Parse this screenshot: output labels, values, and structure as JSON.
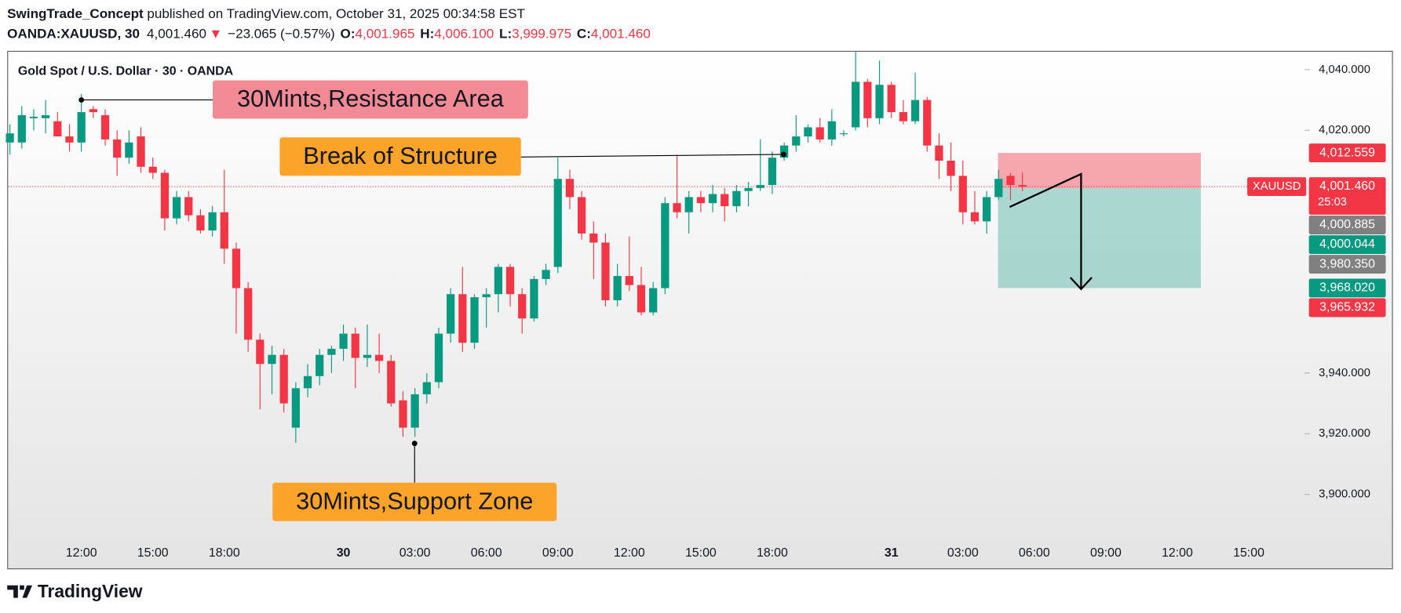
{
  "header": {
    "author": "SwingTrade_Concept",
    "published": " published on TradingView.com, October 31, 2025 00:34:58 EST",
    "symbol": "OANDA:XAUUSD, 30",
    "last": "4,001.460",
    "arrow": "▼",
    "change": "−23.065 (−0.57%)",
    "ohlc": [
      {
        "key": "O:",
        "value": "4,001.965"
      },
      {
        "key": "H:",
        "value": "4,006.100"
      },
      {
        "key": "L:",
        "value": "3,999.975"
      },
      {
        "key": "C:",
        "value": "4,001.460"
      }
    ]
  },
  "chart_data": {
    "type": "candlestick",
    "title": "Gold Spot / U.S. Dollar · 30 · OANDA",
    "categories": [
      null,
      null,
      null,
      null,
      null,
      null,
      "12:00",
      null,
      null,
      null,
      null,
      null,
      "15:00",
      null,
      null,
      null,
      null,
      null,
      "18:00",
      null,
      null,
      null,
      null,
      null,
      null,
      null,
      null,
      null,
      "30",
      null,
      null,
      null,
      null,
      null,
      "03:00",
      null,
      null,
      null,
      null,
      null,
      "06:00",
      null,
      null,
      null,
      null,
      null,
      "09:00",
      null,
      null,
      null,
      null,
      null,
      "12:00",
      null,
      null,
      null,
      null,
      null,
      "15:00",
      null,
      null,
      null,
      null,
      null,
      "18:00",
      null,
      null,
      null,
      null,
      null,
      null,
      null,
      null,
      null,
      "31",
      null,
      null,
      null,
      null,
      null,
      "03:00",
      null,
      null,
      null,
      null,
      null,
      "06:00",
      null,
      null,
      null,
      null,
      null,
      "09:00",
      null,
      null,
      null,
      null,
      null,
      "12:00",
      null,
      null,
      null,
      null,
      null,
      "15:00",
      null
    ],
    "open": [
      4016,
      4016,
      4024,
      4024,
      4023,
      4018,
      4016,
      4027,
      4025,
      4017,
      4011,
      4018,
      4008,
      4006,
      3991,
      3998,
      3992,
      3987,
      3993,
      3981,
      3968,
      3951,
      3943,
      3946,
      3922,
      3935,
      3939,
      3946,
      3948,
      3953,
      3945,
      3946,
      3944,
      3931,
      3922,
      3933,
      3937,
      3953,
      3966,
      3950,
      3965,
      3966,
      3975,
      3966,
      3958,
      3971,
      3975,
      4004,
      3998,
      3986,
      3983,
      3964,
      3972,
      3969,
      3960,
      3968,
      3996,
      3993,
      3998,
      3996,
      3999,
      3995,
      4000,
      4001,
      4002,
      4011,
      4015,
      4018,
      4021,
      4017,
      4019,
      4021,
      4036,
      4024,
      4035,
      4026,
      4023,
      4030,
      4015,
      4010,
      4005,
      3993,
      3990,
      3998,
      4005,
      4001.965,
      null,
      null,
      null,
      null,
      null,
      null,
      null,
      null,
      null,
      null,
      null,
      null,
      null,
      null,
      null,
      null,
      null,
      null,
      null,
      null
    ],
    "high": [
      4022,
      4028,
      4027,
      4030,
      4026,
      4022,
      4032,
      4028,
      4027,
      4020,
      4020,
      4021,
      4011,
      4007,
      4000,
      4000,
      3994,
      3995,
      4007,
      3983,
      3970,
      3953,
      3949,
      3948,
      3937,
      3943,
      3948,
      3949,
      3956,
      3955,
      3956,
      3953,
      3946,
      3934,
      3935,
      3940,
      3955,
      3968,
      3975,
      3966,
      3968,
      3976,
      3976,
      3968,
      3972,
      3976,
      4011,
      4007,
      4000,
      3990,
      3986,
      3976,
      3985,
      3975,
      3970,
      3998,
      4012,
      4000,
      4000,
      4002,
      4001,
      4002,
      4003,
      4017,
      4013,
      4016,
      4025,
      4022,
      4024,
      4027,
      4020,
      4046,
      4037,
      4043,
      4036,
      4030,
      4039,
      4031,
      4019,
      4016,
      4010,
      4000,
      4000,
      4007,
      4006,
      4006.1,
      null,
      null,
      null,
      null,
      null,
      null,
      null,
      null,
      null,
      null,
      null,
      null,
      null,
      null,
      null,
      null,
      null,
      null,
      null,
      null
    ],
    "low": [
      4012,
      4014,
      4020,
      4019,
      4018,
      4013,
      4013,
      4024,
      4015,
      4005,
      4009,
      4006,
      4004,
      3987,
      3989,
      3990,
      3986,
      3985,
      3976,
      3953,
      3947,
      3928,
      3933,
      3927,
      3917,
      3932,
      3936,
      3940,
      3944,
      3935,
      3942,
      3940,
      3929,
      3919,
      3919,
      3930,
      3935,
      3950,
      3947,
      3948,
      3955,
      3960,
      3962,
      3953,
      3957,
      3969,
      3973,
      3994,
      3984,
      3971,
      3962,
      3962,
      3967,
      3959,
      3959,
      3966,
      3991,
      3986,
      3993,
      3993,
      3990,
      3993,
      3995,
      4000,
      3999,
      4010,
      4013,
      4016,
      4016,
      4015,
      4018,
      4020,
      4021,
      4022,
      4024,
      4022,
      4022,
      4013,
      4004,
      4000,
      3989,
      3989,
      3986,
      3997,
      3997,
      3999.975,
      null,
      null,
      null,
      null,
      null,
      null,
      null,
      null,
      null,
      null,
      null,
      null,
      null,
      null,
      null,
      null,
      null,
      null,
      null,
      null
    ],
    "close": [
      4019,
      4025,
      4024.5,
      4025,
      4018,
      4016,
      4026,
      4026,
      4017,
      4011,
      4016,
      4008,
      4006,
      3991,
      3998,
      3992,
      3987,
      3993,
      3981,
      3968,
      3951,
      3943,
      3946,
      3930,
      3935,
      3939,
      3946,
      3948,
      3953,
      3945,
      3946,
      3944,
      3930,
      3922,
      3933,
      3937,
      3953,
      3966,
      3950,
      3965,
      3966,
      3975,
      3966,
      3958,
      3971,
      3974,
      4004,
      3998,
      3986,
      3983,
      3964,
      3972,
      3969,
      3960,
      3968,
      3996,
      3993,
      3998,
      3996,
      3999,
      3995,
      4000,
      4001,
      4002,
      4011,
      4015,
      4018,
      4021,
      4017,
      4023,
      4019,
      4036,
      4024,
      4035,
      4026,
      4023,
      4030,
      4015,
      4010,
      4005,
      3993,
      3990,
      3998,
      4004,
      4002,
      4001.46,
      null,
      null,
      null,
      null,
      null,
      null,
      null,
      null,
      null,
      null,
      null,
      null,
      null,
      null,
      null,
      null,
      null,
      null,
      null,
      null
    ],
    "up_color": "#089981",
    "down_color": "#f23645",
    "ylim": [
      3886.5,
      4046.2
    ],
    "yticks": [
      {
        "value": 4040,
        "label": "4,040.000"
      },
      {
        "value": 4020,
        "label": "4,020.000"
      },
      {
        "value": 3940,
        "label": "3,940.000"
      },
      {
        "value": 3920,
        "label": "3,920.000"
      },
      {
        "value": 3900,
        "label": "3,900.000"
      }
    ],
    "grid": false,
    "price_tags": [
      {
        "value": 4012.559,
        "label": "4,012.559",
        "color": "#f23645"
      },
      {
        "value": 4001.46,
        "label": "4,001.460",
        "color": "#f23645",
        "symbol": "XAUUSD",
        "countdown": "25:03"
      },
      {
        "value": 4000.885,
        "label": "4,000.885",
        "color": "#808080"
      },
      {
        "value": 4000.044,
        "label": "4,000.044",
        "color": "#089981"
      },
      {
        "value": 3980.35,
        "label": "3,980.350",
        "color": "#808080"
      },
      {
        "value": 3968.02,
        "label": "3,968.020",
        "color": "#089981"
      },
      {
        "value": 3965.932,
        "label": "3,965.932",
        "color": "#f23645"
      }
    ],
    "annotations": [
      {
        "text": "30Mints,Resistance Area",
        "color": "#f28a93"
      },
      {
        "text": "Break of Structure",
        "color": "#fca42a"
      },
      {
        "text": "30Mints,Support Zone",
        "color": "#fca42a"
      }
    ]
  },
  "footer": {
    "brand": "TradingView"
  }
}
